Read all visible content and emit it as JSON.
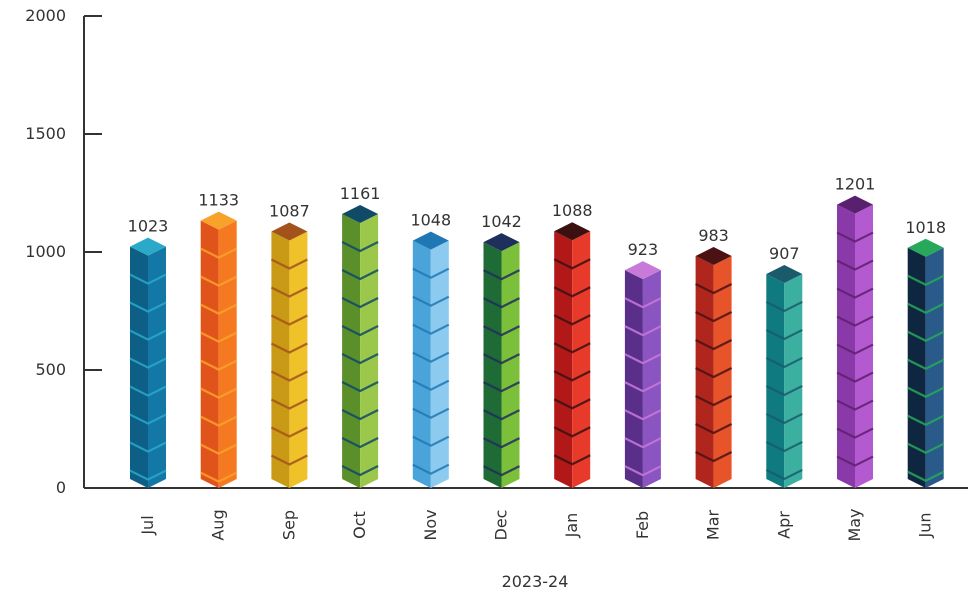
{
  "chart_data": {
    "type": "bar",
    "categories": [
      "Jul",
      "Aug",
      "Sep",
      "Oct",
      "Nov",
      "Dec",
      "Jan",
      "Feb",
      "Mar",
      "Apr",
      "May",
      "Jun"
    ],
    "values": [
      1023,
      1133,
      1087,
      1161,
      1048,
      1042,
      1088,
      923,
      983,
      907,
      1201,
      1018
    ],
    "data_labels": [
      "1023",
      "1133",
      "1087",
      "1161",
      "1048",
      "1042",
      "1088",
      "923",
      "983",
      "907",
      "1201",
      "1018"
    ],
    "xlabel": "2023-24",
    "ylabel": "",
    "ylim": [
      0,
      2000
    ],
    "yticks": [
      0,
      500,
      1000,
      1500,
      2000
    ],
    "ytick_labels": [
      "0",
      "500",
      "1000",
      "1500",
      "2000"
    ],
    "grid": false,
    "legend": "none",
    "bar_style": "stacked 3D cubes",
    "colors": [
      {
        "top": "#2aa9c9",
        "left": "#0e5f86",
        "right": "#1478a6"
      },
      {
        "top": "#f9a22b",
        "left": "#e0541c",
        "right": "#f47920"
      },
      {
        "top": "#a2521a",
        "left": "#c89a16",
        "right": "#f0c22a"
      },
      {
        "top": "#114a66",
        "left": "#5a8f2a",
        "right": "#9bc84a"
      },
      {
        "top": "#1f78b4",
        "left": "#4aa3d9",
        "right": "#8ccaf0"
      },
      {
        "top": "#1f2f5c",
        "left": "#1f6b35",
        "right": "#7bbf3a"
      },
      {
        "top": "#3a1010",
        "left": "#b21818",
        "right": "#e83a2a"
      },
      {
        "top": "#c87ad8",
        "left": "#5a2f8a",
        "right": "#8a55c0"
      },
      {
        "top": "#4a1212",
        "left": "#b0261c",
        "right": "#e8542a"
      },
      {
        "top": "#1a5a6a",
        "left": "#0f7a80",
        "right": "#3cb0a0"
      },
      {
        "top": "#5a2070",
        "left": "#8a3aa8",
        "right": "#b45ad0"
      },
      {
        "top": "#27a85a",
        "left": "#0f2640",
        "right": "#2a5a8a"
      }
    ]
  }
}
